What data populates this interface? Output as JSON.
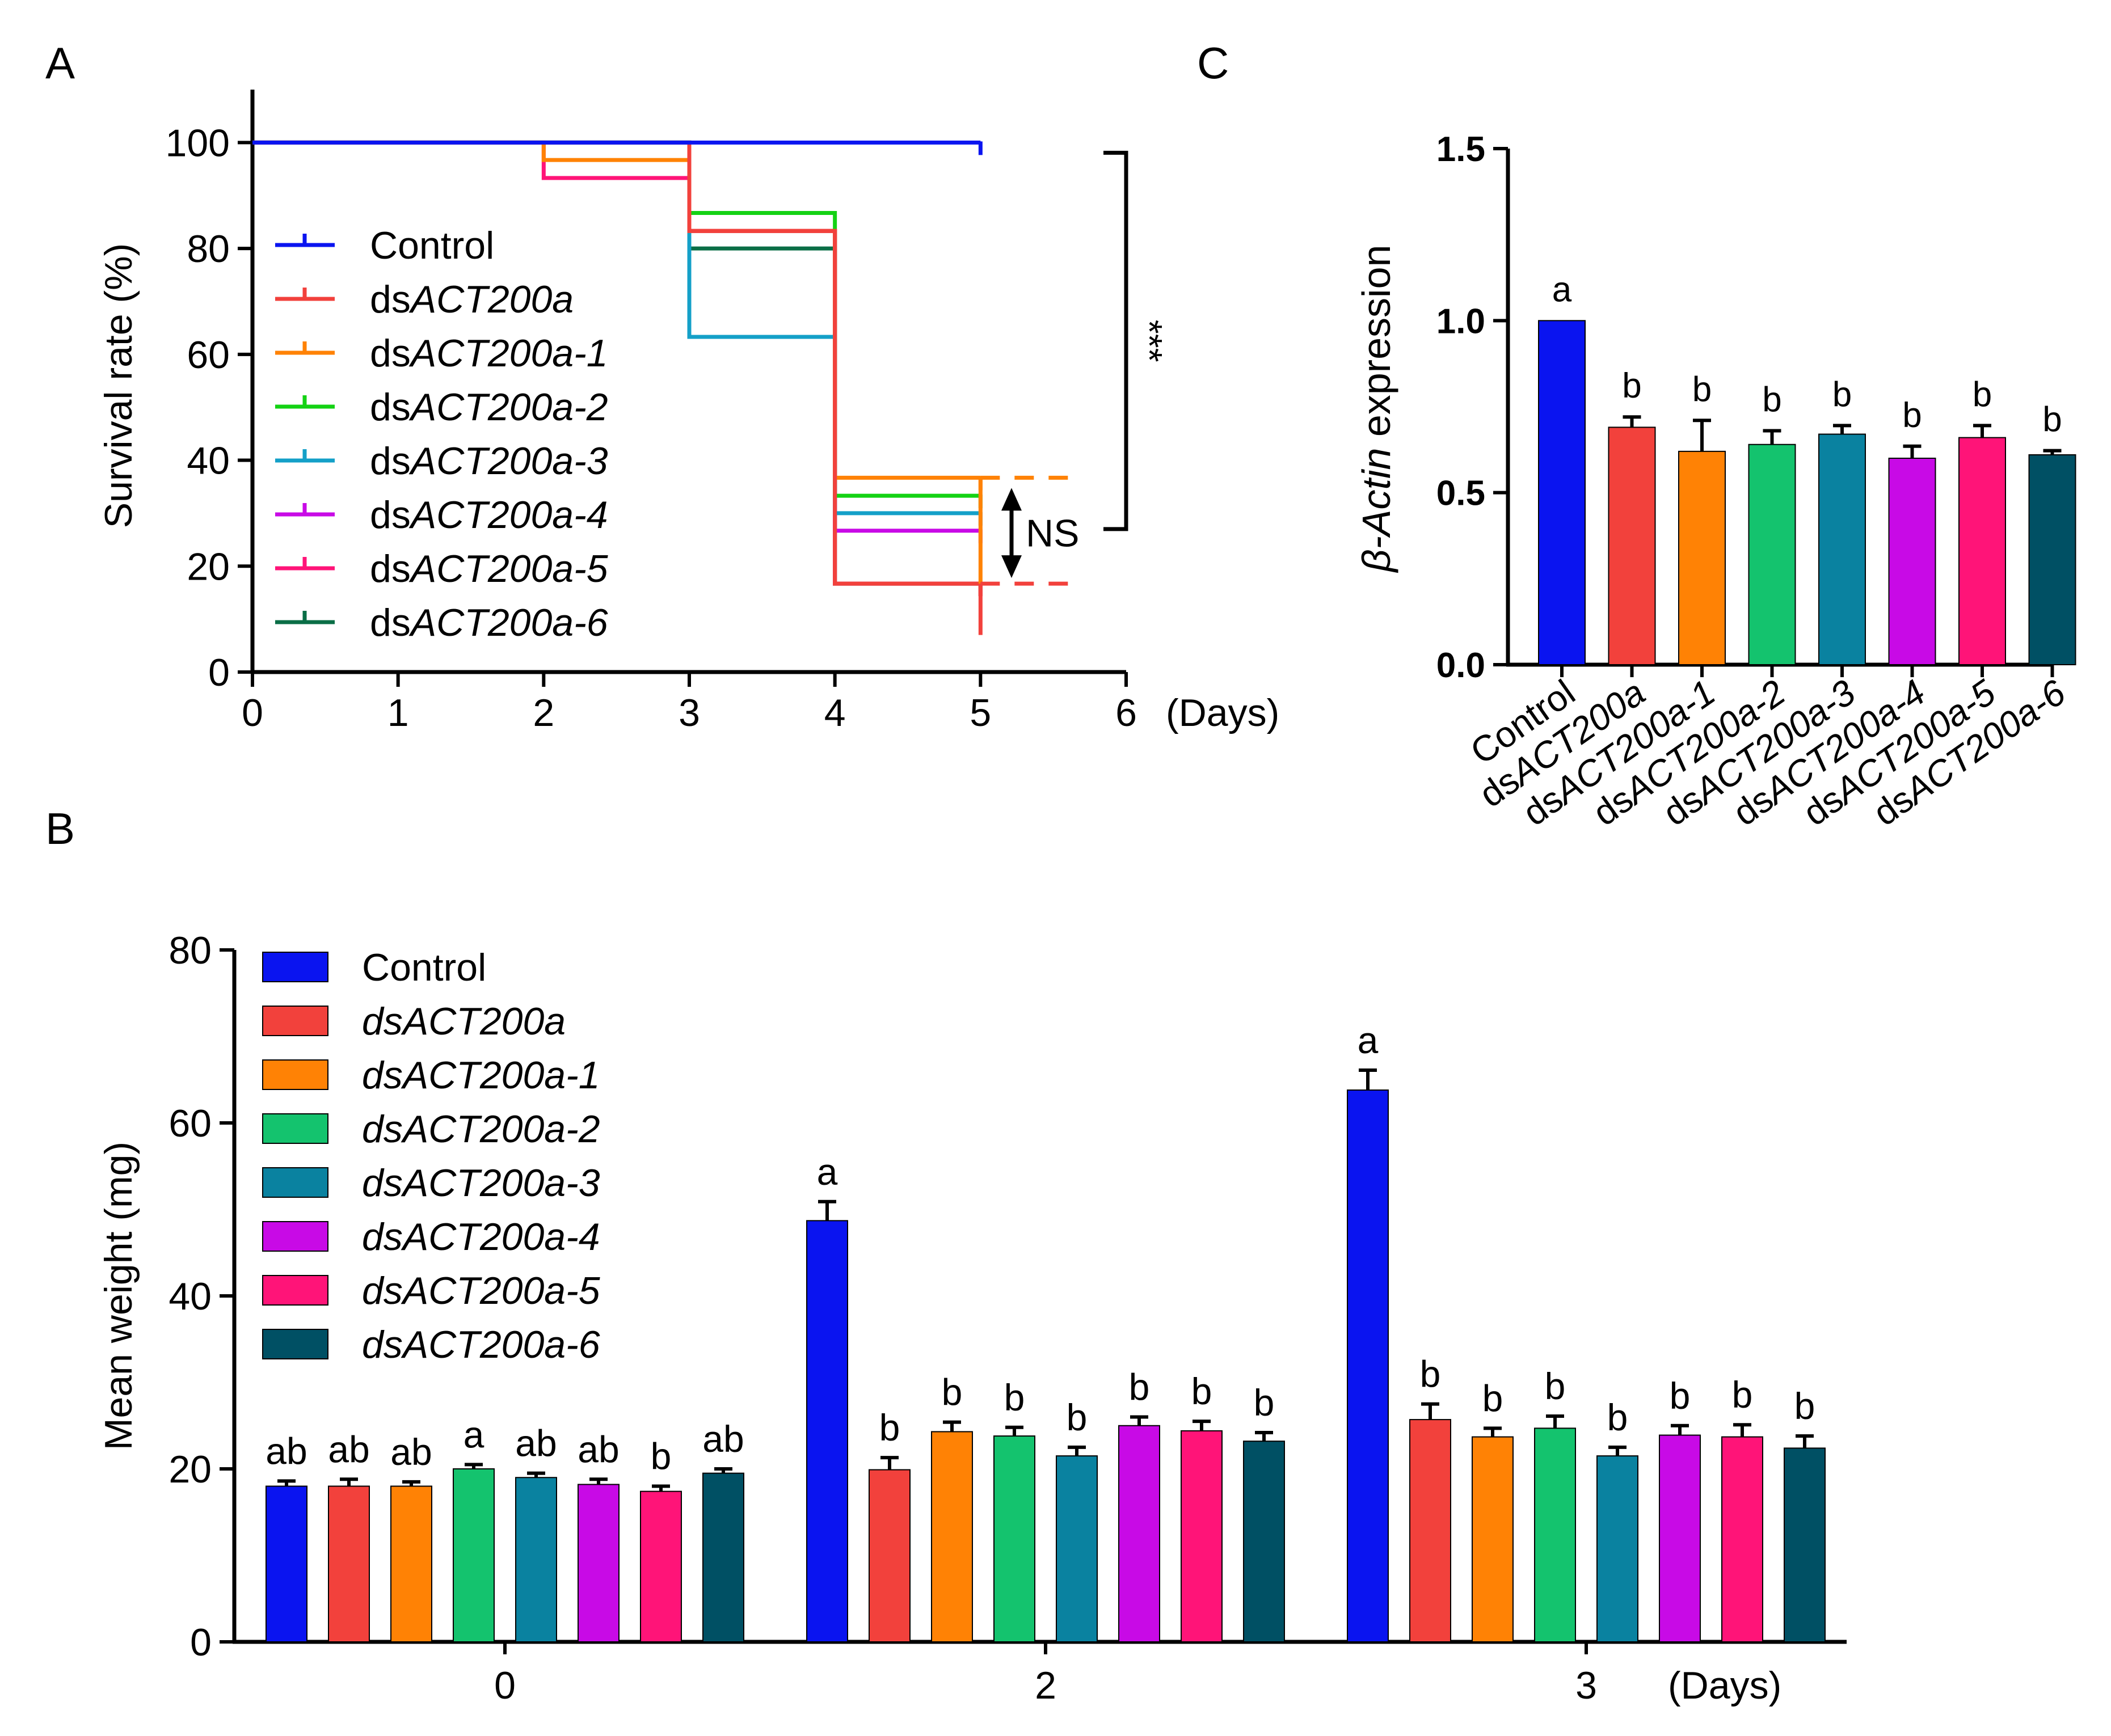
{
  "colors": {
    "Control": "#0a14f0",
    "dsACT200a": "#f2413c",
    "dsACT200a-1": "#ff8205",
    "dsACT200a-2": "#14c36e",
    "dsACT200a-3": "#0a82a0",
    "dsACT200a-4": "#c80ae6",
    "dsACT200a-5": "#ff1478",
    "dsACT200a-6": "#005064",
    "surv_dsACT200a-2": "#14d214",
    "surv_dsACT200a-3": "#14a0c8",
    "surv_dsACT200a-6": "#0a6e46"
  },
  "chart_data": [
    {
      "panel": "A",
      "type": "line",
      "subtype": "kaplan-meier step",
      "panel_label": "A",
      "xlabel": "(Days)",
      "ylabel": "Survival rate (%)",
      "xlim": [
        0,
        6
      ],
      "ylim": [
        0,
        110
      ],
      "xticks": [
        "0",
        "1",
        "2",
        "3",
        "4",
        "5",
        "6"
      ],
      "yticks": [
        "0",
        "20",
        "40",
        "60",
        "80",
        "100"
      ],
      "legend": {
        "position": "center-left",
        "entries": [
          {
            "prefix": "",
            "italic": "",
            "plain": "Control"
          },
          {
            "prefix": "ds",
            "italic": "ACT200a",
            "plain": ""
          },
          {
            "prefix": "ds",
            "italic": "ACT200a-1",
            "plain": ""
          },
          {
            "prefix": "ds",
            "italic": "ACT200a-2",
            "plain": ""
          },
          {
            "prefix": "ds",
            "italic": "ACT200a-3",
            "plain": ""
          },
          {
            "prefix": "ds",
            "italic": "ACT200a-4",
            "plain": ""
          },
          {
            "prefix": "ds",
            "italic": "ACT200a-5",
            "plain": ""
          },
          {
            "prefix": "ds",
            "italic": "ACT200a-6",
            "plain": ""
          }
        ]
      },
      "series": [
        {
          "name": "Control",
          "steps": [
            [
              0,
              100
            ],
            [
              5,
              100
            ]
          ]
        },
        {
          "name": "dsACT200a",
          "steps": [
            [
              0,
              100
            ],
            [
              3,
              100
            ],
            [
              3,
              83.3
            ],
            [
              4,
              83.3
            ],
            [
              4,
              16.7
            ],
            [
              5,
              16.7
            ]
          ]
        },
        {
          "name": "dsACT200a-1",
          "steps": [
            [
              0,
              100
            ],
            [
              2,
              100
            ],
            [
              2,
              96.7
            ],
            [
              3,
              96.7
            ],
            [
              3,
              83.3
            ],
            [
              4,
              83.3
            ],
            [
              4,
              36.7
            ],
            [
              5,
              36.7
            ]
          ]
        },
        {
          "name": "dsACT200a-2",
          "steps": [
            [
              0,
              100
            ],
            [
              3,
              100
            ],
            [
              3,
              86.7
            ],
            [
              4,
              86.7
            ],
            [
              4,
              33.3
            ],
            [
              5,
              33.3
            ]
          ]
        },
        {
          "name": "dsACT200a-3",
          "steps": [
            [
              0,
              100
            ],
            [
              3,
              100
            ],
            [
              3,
              63.3
            ],
            [
              4,
              63.3
            ],
            [
              4,
              30
            ],
            [
              5,
              30
            ]
          ]
        },
        {
          "name": "dsACT200a-4",
          "steps": [
            [
              0,
              100
            ],
            [
              3,
              100
            ],
            [
              3,
              83.3
            ],
            [
              4,
              83.3
            ],
            [
              4,
              26.7
            ],
            [
              5,
              26.7
            ]
          ]
        },
        {
          "name": "dsACT200a-5",
          "steps": [
            [
              0,
              100
            ],
            [
              2,
              100
            ],
            [
              2,
              93.3
            ],
            [
              3,
              93.3
            ],
            [
              3,
              83.3
            ],
            [
              4,
              83.3
            ],
            [
              4,
              16.7
            ],
            [
              5,
              16.7
            ]
          ]
        },
        {
          "name": "dsACT200a-6",
          "steps": [
            [
              0,
              100
            ],
            [
              3,
              100
            ],
            [
              3,
              80
            ],
            [
              4,
              80
            ],
            [
              4,
              16.7
            ],
            [
              5,
              16.7
            ]
          ]
        }
      ],
      "annotations": {
        "significance": "***",
        "significance_span": [
          100,
          27
        ],
        "ns_label": "NS",
        "ns_span": [
          36.7,
          16.7
        ],
        "dashed_extensions": [
          {
            "series": "dsACT200a-1",
            "y": 36.7,
            "x": [
              5,
              5.7
            ]
          },
          {
            "series": "dsACT200a",
            "y": 16.7,
            "x": [
              5,
              5.7
            ]
          }
        ]
      }
    },
    {
      "panel": "B",
      "type": "bar",
      "panel_label": "B",
      "xlabel": "(Days)",
      "ylabel": "Mean weight (mg)",
      "ylim": [
        0,
        80
      ],
      "yticks": [
        "0",
        "20",
        "40",
        "60",
        "80"
      ],
      "categories": [
        "0",
        "2",
        "3"
      ],
      "legend": {
        "position": "top-left",
        "entries": [
          "Control",
          "dsACT200a",
          "dsACT200a-1",
          "dsACT200a-2",
          "dsACT200a-3",
          "dsACT200a-4",
          "dsACT200a-5",
          "dsACT200a-6"
        ]
      },
      "series": [
        {
          "name": "Control",
          "values": [
            18.0,
            48.7,
            63.8
          ],
          "errors": [
            0.6,
            2.2,
            2.3
          ],
          "letters": [
            "ab",
            "a",
            "a"
          ]
        },
        {
          "name": "dsACT200a",
          "values": [
            18.0,
            19.9,
            25.7
          ],
          "errors": [
            0.8,
            1.4,
            1.8
          ],
          "letters": [
            "ab",
            "b",
            "b"
          ]
        },
        {
          "name": "dsACT200a-1",
          "values": [
            18.0,
            24.3,
            23.7
          ],
          "errors": [
            0.5,
            1.1,
            1.0
          ],
          "letters": [
            "ab",
            "b",
            "b"
          ]
        },
        {
          "name": "dsACT200a-2",
          "values": [
            20.0,
            23.8,
            24.7
          ],
          "errors": [
            0.5,
            1.0,
            1.4
          ],
          "letters": [
            "a",
            "b",
            "b"
          ]
        },
        {
          "name": "dsACT200a-3",
          "values": [
            19.0,
            21.5,
            21.5
          ],
          "errors": [
            0.5,
            1.0,
            1.0
          ],
          "letters": [
            "ab",
            "b",
            "b"
          ]
        },
        {
          "name": "dsACT200a-4",
          "values": [
            18.2,
            25.0,
            23.9
          ],
          "errors": [
            0.6,
            1.0,
            1.1
          ],
          "letters": [
            "ab",
            "b",
            "b"
          ]
        },
        {
          "name": "dsACT200a-5",
          "values": [
            17.4,
            24.4,
            23.7
          ],
          "errors": [
            0.6,
            1.1,
            1.4
          ],
          "letters": [
            "b",
            "b",
            "b"
          ]
        },
        {
          "name": "dsACT200a-6",
          "values": [
            19.5,
            23.2,
            22.4
          ],
          "errors": [
            0.5,
            1.0,
            1.4
          ],
          "letters": [
            "ab",
            "b",
            "b"
          ]
        }
      ]
    },
    {
      "panel": "C",
      "type": "bar",
      "panel_label": "C",
      "ylabel_italic": "β-Actin",
      "ylabel_plain": " expression",
      "ylim": [
        0,
        1.5
      ],
      "yticks": [
        "0.0",
        "0.5",
        "1.0",
        "1.5"
      ],
      "categories": [
        {
          "prefix": "",
          "italic": "",
          "plain": "Control"
        },
        {
          "prefix": "ds",
          "italic": "ACT200a",
          "plain": ""
        },
        {
          "prefix": "ds",
          "italic": "ACT200a-1",
          "plain": ""
        },
        {
          "prefix": "ds",
          "italic": "ACT200a-2",
          "plain": ""
        },
        {
          "prefix": "ds",
          "italic": "ACT200a-3",
          "plain": ""
        },
        {
          "prefix": "ds",
          "italic": "ACT200a-4",
          "plain": ""
        },
        {
          "prefix": "ds",
          "italic": "ACT200a-5",
          "plain": ""
        },
        {
          "prefix": "ds",
          "italic": "ACT200a-6",
          "plain": ""
        }
      ],
      "series_keys": [
        "Control",
        "dsACT200a",
        "dsACT200a-1",
        "dsACT200a-2",
        "dsACT200a-3",
        "dsACT200a-4",
        "dsACT200a-5",
        "dsACT200a-6"
      ],
      "values": [
        1.0,
        0.69,
        0.62,
        0.64,
        0.67,
        0.6,
        0.66,
        0.61
      ],
      "errors": [
        0.0,
        0.03,
        0.09,
        0.04,
        0.025,
        0.035,
        0.035,
        0.012
      ],
      "letters": [
        "a",
        "b",
        "b",
        "b",
        "b",
        "b",
        "b",
        "b"
      ]
    }
  ]
}
